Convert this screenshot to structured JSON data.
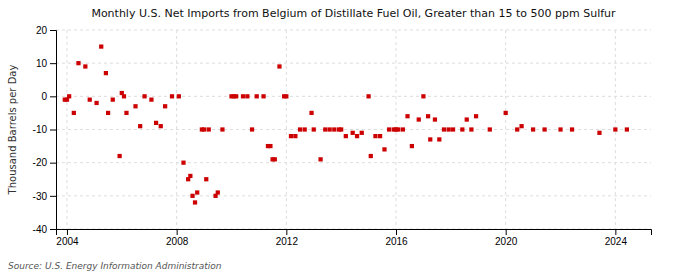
{
  "chart_data": {
    "type": "scatter",
    "title": "Monthly U.S. Net Imports from Belgium of Distillate Fuel Oil, Greater than 15 to 500 ppm Sulfur",
    "ylabel": "Thousand Barrels per Day",
    "source": "Source: U.S. Energy Information Administration",
    "color": "#cc0000",
    "marker": "square",
    "grid": true,
    "xlim": [
      2003.6,
      2025.3
    ],
    "xticks": [
      2004,
      2008,
      2012,
      2016,
      2020,
      2024
    ],
    "ylim": [
      -40,
      20
    ],
    "yticks": [
      -40,
      -30,
      -20,
      -10,
      0,
      10,
      20
    ],
    "x": [
      2003.92,
      2004.0,
      2004.08,
      2004.25,
      2004.42,
      2004.67,
      2004.83,
      2005.08,
      2005.25,
      2005.42,
      2005.5,
      2005.67,
      2005.92,
      2006.0,
      2006.08,
      2006.17,
      2006.5,
      2006.67,
      2006.83,
      2007.08,
      2007.25,
      2007.42,
      2007.58,
      2007.83,
      2008.08,
      2008.25,
      2008.42,
      2008.5,
      2008.58,
      2008.67,
      2008.75,
      2008.92,
      2009.0,
      2009.08,
      2009.17,
      2009.42,
      2009.5,
      2009.67,
      2010.0,
      2010.08,
      2010.17,
      2010.42,
      2010.58,
      2010.75,
      2010.92,
      2011.17,
      2011.33,
      2011.42,
      2011.5,
      2011.58,
      2011.75,
      2011.92,
      2012.0,
      2012.17,
      2012.33,
      2012.5,
      2012.67,
      2012.92,
      2013.0,
      2013.25,
      2013.42,
      2013.58,
      2013.75,
      2013.92,
      2014.0,
      2014.17,
      2014.42,
      2014.58,
      2014.75,
      2015.0,
      2015.08,
      2015.25,
      2015.42,
      2015.58,
      2015.75,
      2015.92,
      2016.0,
      2016.08,
      2016.25,
      2016.42,
      2016.58,
      2016.83,
      2017.0,
      2017.17,
      2017.25,
      2017.42,
      2017.58,
      2017.75,
      2017.92,
      2018.08,
      2018.42,
      2018.58,
      2018.75,
      2018.92,
      2019.42,
      2020.0,
      2020.42,
      2020.58,
      2021.0,
      2021.42,
      2022.0,
      2022.42,
      2023.42,
      2024.0,
      2024.42
    ],
    "values": [
      -1.0,
      -1.0,
      0.0,
      -5.0,
      10.0,
      9.0,
      -1.0,
      -2.0,
      15.0,
      7.0,
      -5.0,
      -1.0,
      -18.0,
      1.0,
      0.0,
      -5.0,
      -3.0,
      -9.0,
      0.0,
      -1.0,
      -8.0,
      -9.0,
      -3.0,
      0.0,
      0.0,
      -20.0,
      -25.0,
      -24.0,
      -30.0,
      -32.0,
      -29.0,
      -10.0,
      -10.0,
      -25.0,
      -10.0,
      -30.0,
      -29.0,
      -10.0,
      0.0,
      0.0,
      0.0,
      0.0,
      0.0,
      -10.0,
      0.0,
      0.0,
      -15.0,
      -15.0,
      -19.0,
      -19.0,
      9.0,
      0.0,
      0.0,
      -12.0,
      -12.0,
      -10.0,
      -10.0,
      -5.0,
      -10.0,
      -19.0,
      -10.0,
      -10.0,
      -10.0,
      -10.0,
      -10.0,
      -12.0,
      -11.0,
      -12.0,
      -11.0,
      0.0,
      -18.0,
      -12.0,
      -12.0,
      -16.0,
      -10.0,
      -10.0,
      -10.0,
      -10.0,
      -10.0,
      -6.0,
      -15.0,
      -7.0,
      0.0,
      -6.0,
      -13.0,
      -7.0,
      -13.0,
      -10.0,
      -10.0,
      -10.0,
      -10.0,
      -7.0,
      -10.0,
      -6.0,
      -10.0,
      -5.0,
      -10.0,
      -9.0,
      -10.0,
      -10.0,
      -10.0,
      -10.0,
      -11.0,
      -10.0,
      -10.0
    ]
  }
}
